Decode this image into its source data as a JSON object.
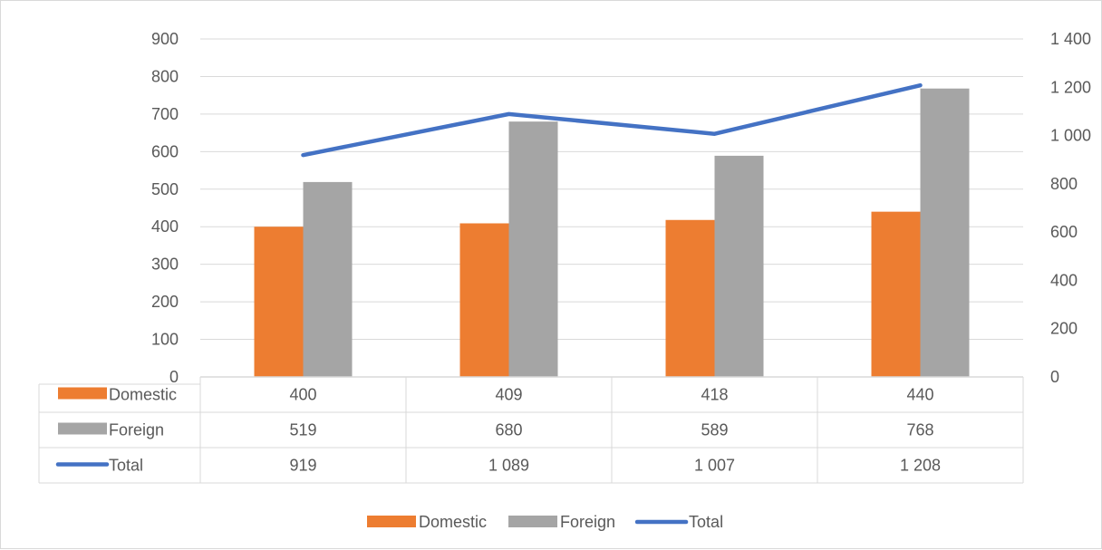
{
  "chart_data": {
    "type": "bar",
    "categories": [
      "",
      "",
      "",
      ""
    ],
    "series": [
      {
        "name": "Domestic",
        "axis": "left",
        "kind": "bar",
        "color": "#ed7d31",
        "values": [
          400,
          409,
          418,
          440
        ],
        "labels": [
          "400",
          "409",
          "418",
          "440"
        ]
      },
      {
        "name": "Foreign",
        "axis": "left",
        "kind": "bar",
        "color": "#a5a5a5",
        "values": [
          519,
          680,
          589,
          768
        ],
        "labels": [
          "519",
          "680",
          "589",
          "768"
        ]
      },
      {
        "name": "Total",
        "axis": "right",
        "kind": "line",
        "color": "#4472c4",
        "values": [
          919,
          1089,
          1007,
          1208
        ],
        "labels": [
          "919",
          "1 089",
          "1 007",
          "1 208"
        ]
      }
    ],
    "y_left": {
      "min": 0,
      "max": 900,
      "step": 100,
      "ticks": [
        "0",
        "100",
        "200",
        "300",
        "400",
        "500",
        "600",
        "700",
        "800",
        "900"
      ]
    },
    "y_right": {
      "min": 0,
      "max": 1400,
      "step": 200,
      "ticks": [
        "0",
        "200",
        "400",
        "600",
        "800",
        "1 000",
        "1 200",
        "1 400"
      ]
    },
    "grid": true,
    "data_table": true,
    "legend_position": "bottom",
    "title": "",
    "xlabel": "",
    "ylabel": ""
  }
}
